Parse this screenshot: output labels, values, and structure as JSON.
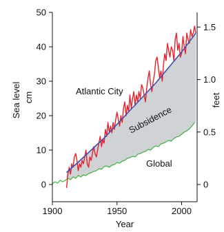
{
  "chart_data": {
    "type": "line",
    "xlabel": "Year",
    "ylabel_left": "Sea level",
    "ylabel_left_unit": "cm",
    "ylabel_right": "feet",
    "xlim": [
      1900,
      2012
    ],
    "ylim_left": [
      -5,
      50
    ],
    "ylim_right_feet": [
      -0.164,
      1.64
    ],
    "x_ticks": [
      1900,
      1950,
      2000
    ],
    "y_ticks_left": [
      0,
      10,
      20,
      30,
      40,
      50
    ],
    "y_ticks_right": [
      "0",
      "0.5",
      "1.0",
      "1.5"
    ],
    "y_ticks_right_values": [
      0,
      0.5,
      1.0,
      1.5
    ],
    "grid": false,
    "annotations": {
      "atlantic_city": "Atlantic City",
      "subsidence": "Subsidence",
      "global": "Global"
    },
    "colors": {
      "atlantic_city": "#e8202a",
      "trend": "#3b4fb0",
      "global": "#3fae3f",
      "fill": "#cfd3d6"
    },
    "series": [
      {
        "id": "atlantic_city",
        "x": [
          1911,
          1912,
          1913,
          1914,
          1915,
          1916,
          1917,
          1918,
          1919,
          1920,
          1921,
          1922,
          1923,
          1924,
          1925,
          1926,
          1927,
          1928,
          1929,
          1930,
          1931,
          1932,
          1933,
          1934,
          1935,
          1936,
          1937,
          1938,
          1939,
          1940,
          1941,
          1942,
          1943,
          1944,
          1945,
          1946,
          1947,
          1948,
          1949,
          1950,
          1951,
          1952,
          1953,
          1954,
          1955,
          1956,
          1957,
          1958,
          1959,
          1960,
          1961,
          1962,
          1963,
          1964,
          1965,
          1966,
          1967,
          1968,
          1969,
          1970,
          1971,
          1972,
          1973,
          1974,
          1975,
          1976,
          1977,
          1978,
          1979,
          1980,
          1981,
          1982,
          1983,
          1984,
          1985,
          1986,
          1987,
          1988,
          1989,
          1990,
          1991,
          1992,
          1993,
          1994,
          1995,
          1996,
          1997,
          1998,
          1999,
          2000,
          2001,
          2002,
          2003,
          2004,
          2005,
          2006,
          2007,
          2008,
          2009,
          2010,
          2011
        ],
        "y": [
          -1,
          3,
          5,
          3,
          6,
          5,
          8,
          9,
          7,
          4,
          6,
          5,
          7,
          6,
          8,
          10,
          6,
          5,
          8,
          7,
          9,
          11,
          9,
          8,
          10,
          12,
          14,
          11,
          13,
          12,
          16,
          14,
          18,
          15,
          17,
          15,
          18,
          16,
          19,
          21,
          19,
          17,
          20,
          18,
          22,
          24,
          20,
          23,
          21,
          26,
          22,
          25,
          27,
          23,
          26,
          24,
          27,
          25,
          29,
          28,
          26,
          24,
          28,
          31,
          33,
          29,
          27,
          30,
          32,
          36,
          37,
          34,
          31,
          33,
          30,
          35,
          38,
          36,
          41,
          39,
          37,
          40,
          39,
          36,
          42,
          44,
          39,
          41,
          37,
          38,
          43,
          40,
          38,
          44,
          42,
          41,
          45,
          43,
          44,
          46,
          44
        ]
      },
      {
        "id": "trend",
        "x": [
          1911,
          1920,
          1930,
          1940,
          1950,
          1960,
          1970,
          1980,
          1990,
          2000,
          2011
        ],
        "y": [
          3.5,
          6.5,
          10.0,
          13.5,
          17.5,
          21.5,
          25.5,
          29.5,
          34.0,
          38.5,
          44.0
        ]
      },
      {
        "id": "global",
        "x": [
          1900,
          1902,
          1904,
          1906,
          1908,
          1910,
          1912,
          1914,
          1916,
          1918,
          1920,
          1922,
          1924,
          1926,
          1928,
          1930,
          1932,
          1934,
          1936,
          1938,
          1940,
          1942,
          1944,
          1946,
          1948,
          1950,
          1952,
          1954,
          1956,
          1958,
          1960,
          1962,
          1964,
          1966,
          1968,
          1970,
          1972,
          1974,
          1976,
          1978,
          1980,
          1982,
          1984,
          1986,
          1988,
          1990,
          1992,
          1994,
          1996,
          1998,
          2000,
          2002,
          2004,
          2006,
          2008,
          2010
        ],
        "y": [
          0.2,
          0.8,
          0.4,
          1.2,
          0.8,
          1.2,
          1.8,
          1.4,
          2.2,
          1.8,
          2.6,
          2.2,
          2.8,
          2.6,
          3.2,
          3.4,
          3.8,
          4.0,
          4.6,
          4.4,
          5.2,
          5.4,
          5.0,
          5.6,
          5.8,
          6.4,
          6.2,
          6.8,
          7.0,
          7.6,
          7.8,
          8.2,
          8.0,
          8.8,
          9.0,
          9.4,
          9.6,
          10.2,
          10.0,
          10.8,
          11.2,
          11.0,
          11.8,
          12.0,
          12.4,
          12.8,
          12.6,
          13.4,
          13.8,
          14.0,
          14.6,
          15.2,
          15.6,
          16.2,
          17.0,
          18.0
        ]
      }
    ]
  }
}
